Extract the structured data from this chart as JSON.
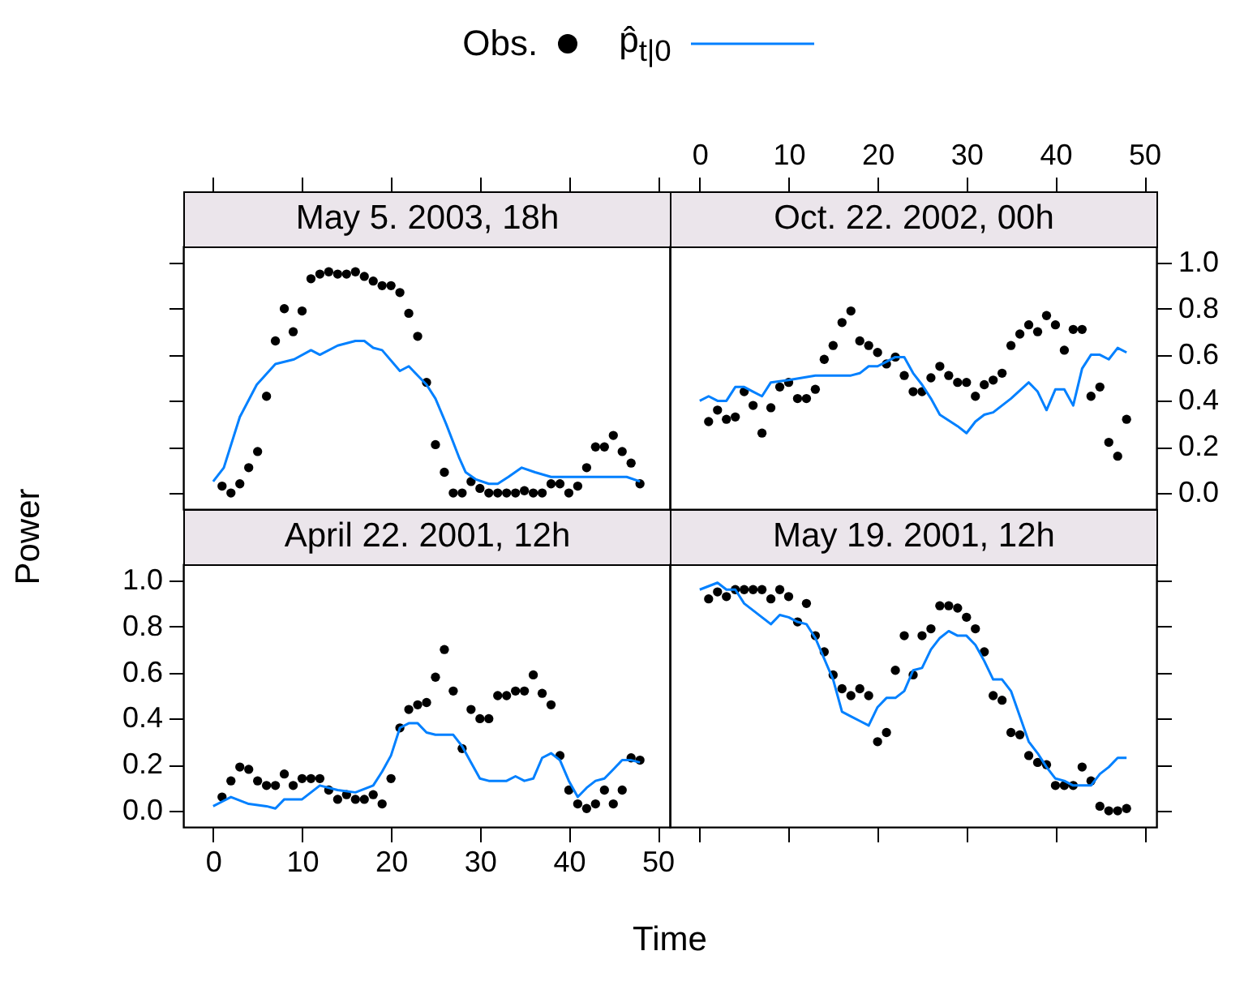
{
  "chart_data": [
    {
      "type": "scatter",
      "title": "May 5. 2003, 18h",
      "legend": "top",
      "x": [
        1,
        2,
        3,
        4,
        5,
        6,
        7,
        8,
        9,
        10,
        11,
        12,
        13,
        14,
        15,
        16,
        17,
        18,
        19,
        20,
        21,
        22,
        23,
        24,
        25,
        26,
        27,
        28,
        29,
        30,
        31,
        32,
        33,
        34,
        35,
        36,
        37,
        38,
        39,
        40,
        41,
        42,
        43,
        44,
        45,
        46,
        47,
        48
      ],
      "series": [
        {
          "name": "Obs.",
          "type": "scatter",
          "marker": "circle",
          "color": "#000000",
          "values": [
            0.03,
            0.0,
            0.04,
            0.11,
            0.18,
            0.42,
            0.66,
            0.8,
            0.7,
            0.79,
            0.93,
            0.95,
            0.96,
            0.95,
            0.95,
            0.96,
            0.94,
            0.92,
            0.9,
            0.9,
            0.87,
            0.78,
            0.68,
            0.48,
            0.21,
            0.09,
            0.0,
            0.0,
            0.05,
            0.02,
            0.0,
            0.0,
            0.0,
            0.0,
            0.01,
            0.0,
            0.0,
            0.04,
            0.04,
            0.0,
            0.03,
            0.11,
            0.2,
            0.2,
            0.25,
            0.18,
            0.13,
            0.04
          ]
        },
        {
          "name": "p̂$_{t|0}$",
          "type": "line",
          "color": "#0080ff",
          "x": [
            0,
            1.2,
            3,
            4.9,
            7,
            9.1,
            11,
            12,
            14,
            16,
            17,
            18,
            19,
            21,
            22,
            24,
            25,
            26.2,
            27.7,
            28.4,
            29.5,
            31,
            32,
            33.2,
            34.7,
            36.2,
            38,
            40.4,
            42.9,
            46.5,
            48
          ],
          "values": [
            0.05,
            0.11,
            0.33,
            0.47,
            0.56,
            0.58,
            0.62,
            0.6,
            0.64,
            0.66,
            0.66,
            0.63,
            0.62,
            0.53,
            0.55,
            0.47,
            0.41,
            0.3,
            0.15,
            0.09,
            0.06,
            0.04,
            0.04,
            0.07,
            0.11,
            0.09,
            0.07,
            0.07,
            0.07,
            0.07,
            0.05
          ]
        }
      ],
      "xlim": [
        -3.36,
        51.36
      ],
      "xticks": [
        0,
        10,
        20,
        30,
        40,
        50
      ],
      "ylim": [
        -0.07,
        1.07
      ],
      "yticks": [
        0,
        0.2,
        0.4,
        0.6,
        0.8,
        1
      ],
      "tick_labels": false
    },
    {
      "type": "scatter",
      "title": "Oct. 22. 2002, 00h",
      "x": [
        1,
        2,
        3,
        4,
        5,
        6,
        7,
        8,
        9,
        10,
        11,
        12,
        13,
        14,
        15,
        16,
        17,
        18,
        19,
        20,
        21,
        22,
        23,
        24,
        25,
        26,
        27,
        28,
        29,
        30,
        31,
        32,
        33,
        34,
        35,
        36,
        37,
        38,
        39,
        40,
        41,
        42,
        43,
        44,
        45,
        46,
        47,
        48
      ],
      "series": [
        {
          "type": "scatter",
          "marker": "circle",
          "color": "#000000",
          "values": [
            0.31,
            0.36,
            0.32,
            0.33,
            0.44,
            0.38,
            0.26,
            0.37,
            0.46,
            0.48,
            0.41,
            0.41,
            0.45,
            0.58,
            0.64,
            0.74,
            0.79,
            0.66,
            0.64,
            0.61,
            0.56,
            0.59,
            0.51,
            0.44,
            0.44,
            0.5,
            0.55,
            0.51,
            0.48,
            0.48,
            0.42,
            0.47,
            0.49,
            0.52,
            0.64,
            0.69,
            0.73,
            0.7,
            0.77,
            0.73,
            0.62,
            0.71,
            0.71,
            0.42,
            0.46,
            0.22,
            0.16,
            0.32
          ]
        },
        {
          "type": "line",
          "color": "#0080ff",
          "x": [
            0,
            1,
            2,
            3,
            4,
            5,
            6,
            7,
            8,
            10,
            13,
            15,
            17,
            18,
            19,
            20,
            21,
            22,
            23,
            24,
            25,
            26,
            27,
            29,
            30,
            31,
            32,
            33,
            35,
            37,
            38,
            39,
            40,
            41,
            42,
            43,
            44,
            45,
            46,
            47,
            48
          ],
          "values": [
            0.4,
            0.42,
            0.4,
            0.4,
            0.46,
            0.46,
            0.44,
            0.42,
            0.48,
            0.49,
            0.51,
            0.51,
            0.51,
            0.52,
            0.55,
            0.55,
            0.57,
            0.59,
            0.59,
            0.52,
            0.47,
            0.41,
            0.34,
            0.29,
            0.26,
            0.31,
            0.34,
            0.35,
            0.41,
            0.48,
            0.44,
            0.36,
            0.45,
            0.45,
            0.38,
            0.54,
            0.6,
            0.6,
            0.58,
            0.63,
            0.61
          ]
        }
      ],
      "xlim": [
        -3.36,
        51.36
      ],
      "xticks": [
        0,
        10,
        20,
        30,
        40,
        50
      ],
      "ylim": [
        -0.07,
        1.07
      ],
      "yticks": [
        {
          "value": 0,
          "label": "0.0"
        },
        {
          "value": 0.2,
          "label": "0.2"
        },
        {
          "value": 0.4,
          "label": "0.4"
        },
        {
          "value": 0.6,
          "label": "0.6"
        },
        {
          "value": 0.8,
          "label": "0.8"
        },
        {
          "value": 1,
          "label": "1.0"
        }
      ]
    },
    {
      "type": "scatter",
      "title": "April 22. 2001, 12h",
      "xlabel": "Time",
      "ylabel": "Power",
      "x": [
        1,
        2,
        3,
        4,
        5,
        6,
        7,
        8,
        9,
        10,
        11,
        12,
        13,
        14,
        15,
        16,
        17,
        18,
        19,
        20,
        21,
        22,
        23,
        24,
        25,
        26,
        27,
        28,
        29,
        30,
        31,
        32,
        33,
        34,
        35,
        36,
        37,
        38,
        39,
        40,
        41,
        42,
        43,
        44,
        45,
        46,
        47,
        48
      ],
      "series": [
        {
          "type": "scatter",
          "marker": "circle",
          "color": "#000000",
          "values": [
            0.06,
            0.13,
            0.19,
            0.18,
            0.13,
            0.11,
            0.11,
            0.16,
            0.11,
            0.14,
            0.14,
            0.14,
            0.09,
            0.05,
            0.07,
            0.05,
            0.05,
            0.07,
            0.03,
            0.14,
            0.36,
            0.44,
            0.46,
            0.47,
            0.58,
            0.7,
            0.52,
            0.27,
            0.44,
            0.4,
            0.4,
            0.5,
            0.5,
            0.52,
            0.52,
            0.59,
            0.51,
            0.46,
            0.24,
            0.09,
            0.03,
            0.01,
            0.03,
            0.09,
            0.03,
            0.09,
            0.23,
            0.22
          ]
        },
        {
          "type": "line",
          "color": "#0080ff",
          "x": [
            0,
            1,
            2,
            4,
            6,
            7,
            8,
            10,
            12,
            14,
            16,
            18,
            19,
            20,
            21,
            22,
            23,
            24,
            25,
            27,
            28,
            29,
            30,
            31,
            33,
            34,
            35,
            36,
            37,
            38,
            39,
            40,
            41,
            42,
            43,
            44,
            45,
            46,
            47,
            48
          ],
          "values": [
            0.02,
            0.04,
            0.06,
            0.03,
            0.02,
            0.01,
            0.05,
            0.05,
            0.11,
            0.09,
            0.08,
            0.11,
            0.17,
            0.24,
            0.36,
            0.38,
            0.38,
            0.34,
            0.33,
            0.33,
            0.28,
            0.21,
            0.14,
            0.13,
            0.13,
            0.15,
            0.13,
            0.14,
            0.23,
            0.25,
            0.22,
            0.13,
            0.06,
            0.1,
            0.13,
            0.14,
            0.18,
            0.22,
            0.22,
            0.21
          ]
        }
      ],
      "xlim": [
        -3.36,
        51.36
      ],
      "xticks": [
        0,
        10,
        20,
        30,
        40,
        50
      ],
      "ylim": [
        -0.07,
        1.07
      ],
      "yticks": [
        {
          "value": 0,
          "label": "0.0"
        },
        {
          "value": 0.2,
          "label": "0.2"
        },
        {
          "value": 0.4,
          "label": "0.4"
        },
        {
          "value": 0.6,
          "label": "0.6"
        },
        {
          "value": 0.8,
          "label": "0.8"
        },
        {
          "value": 1,
          "label": "1.0"
        }
      ]
    },
    {
      "type": "scatter",
      "title": "May 19. 2001, 12h",
      "x": [
        1,
        2,
        3,
        4,
        5,
        6,
        7,
        8,
        9,
        10,
        11,
        12,
        13,
        14,
        15,
        16,
        17,
        18,
        19,
        20,
        21,
        22,
        23,
        24,
        25,
        26,
        27,
        28,
        29,
        30,
        31,
        32,
        33,
        34,
        35,
        36,
        37,
        38,
        39,
        40,
        41,
        42,
        43,
        44,
        45,
        46,
        47,
        48
      ],
      "series": [
        {
          "type": "scatter",
          "marker": "circle",
          "color": "#000000",
          "values": [
            0.92,
            0.95,
            0.93,
            0.96,
            0.96,
            0.96,
            0.96,
            0.92,
            0.96,
            0.93,
            0.82,
            0.9,
            0.76,
            0.69,
            0.59,
            0.53,
            0.5,
            0.53,
            0.5,
            0.3,
            0.34,
            0.61,
            0.76,
            0.59,
            0.76,
            0.79,
            0.89,
            0.89,
            0.88,
            0.84,
            0.79,
            0.69,
            0.5,
            0.48,
            0.34,
            0.33,
            0.24,
            0.21,
            0.2,
            0.11,
            0.11,
            0.11,
            0.19,
            0.13,
            0.02,
            0.0,
            0.0,
            0.01
          ]
        },
        {
          "type": "line",
          "color": "#0080ff",
          "x": [
            0,
            2,
            3,
            4,
            5,
            6,
            7,
            8,
            9,
            10,
            11,
            12,
            13,
            14,
            15,
            16,
            17,
            18,
            19,
            20,
            21,
            22,
            23,
            24,
            25,
            26,
            27,
            28,
            29,
            30,
            31,
            32,
            33,
            34,
            35,
            36,
            37,
            38,
            39,
            40,
            41,
            42,
            43,
            44,
            45,
            46,
            47,
            48
          ],
          "values": [
            0.96,
            0.99,
            0.96,
            0.96,
            0.9,
            0.87,
            0.84,
            0.81,
            0.85,
            0.84,
            0.82,
            0.81,
            0.75,
            0.66,
            0.57,
            0.43,
            0.41,
            0.39,
            0.37,
            0.45,
            0.49,
            0.49,
            0.52,
            0.61,
            0.62,
            0.7,
            0.75,
            0.78,
            0.76,
            0.76,
            0.72,
            0.65,
            0.57,
            0.57,
            0.52,
            0.41,
            0.3,
            0.25,
            0.19,
            0.14,
            0.13,
            0.11,
            0.11,
            0.11,
            0.16,
            0.19,
            0.23,
            0.23
          ]
        }
      ],
      "xlim": [
        -3.36,
        51.36
      ],
      "xticks": [
        0,
        10,
        20,
        30,
        40,
        50
      ],
      "ylim": [
        -0.07,
        1.07
      ],
      "yticks": [
        0,
        0.2,
        0.4,
        0.6,
        0.8,
        1
      ],
      "tick_labels": false
    }
  ]
}
